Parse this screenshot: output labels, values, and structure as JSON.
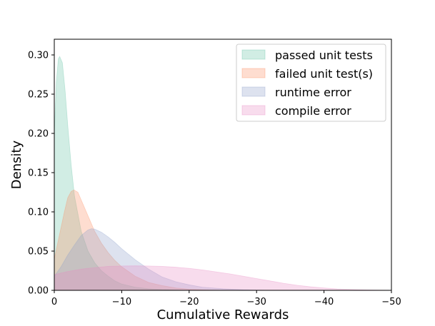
{
  "chart_data": {
    "type": "area",
    "title": "",
    "xlabel": "Cumulative Rewards",
    "ylabel": "Density",
    "xlim": [
      0,
      -50
    ],
    "ylim": [
      0.0,
      0.32
    ],
    "grid": false,
    "legend_position": "top-right",
    "x_ticks": [
      0,
      -10,
      -20,
      -30,
      -40,
      -50
    ],
    "x_tick_labels": [
      "0",
      "−10",
      "−20",
      "−30",
      "−40",
      "−50"
    ],
    "y_ticks": [
      0.0,
      0.05,
      0.1,
      0.15,
      0.2,
      0.25,
      0.3
    ],
    "y_tick_labels": [
      "0.00",
      "0.05",
      "0.10",
      "0.15",
      "0.20",
      "0.25",
      "0.30"
    ],
    "series": [
      {
        "name": "passed unit tests",
        "color": "#66c2a5",
        "x": [
          0,
          -0.3,
          -0.6,
          -0.8,
          -1.2,
          -1.6,
          -2,
          -2.5,
          -3,
          -4,
          -5,
          -6,
          -7,
          -8,
          -9,
          -10,
          -12,
          -14,
          -16,
          -18,
          -20
        ],
        "y": [
          0.2,
          0.265,
          0.295,
          0.298,
          0.29,
          0.255,
          0.21,
          0.16,
          0.12,
          0.075,
          0.05,
          0.035,
          0.025,
          0.018,
          0.012,
          0.008,
          0.004,
          0.002,
          0.001,
          0.0004,
          0
        ]
      },
      {
        "name": "failed unit test(s)",
        "color": "#fc8d62",
        "x": [
          0,
          -0.5,
          -1,
          -1.5,
          -2,
          -2.5,
          -2.9,
          -3.5,
          -4,
          -5,
          -6,
          -7,
          -8,
          -9,
          -10,
          -12,
          -14,
          -16,
          -18,
          -20,
          -22,
          -25
        ],
        "y": [
          0.04,
          0.06,
          0.08,
          0.1,
          0.118,
          0.126,
          0.128,
          0.125,
          0.115,
          0.095,
          0.075,
          0.06,
          0.048,
          0.038,
          0.03,
          0.018,
          0.01,
          0.006,
          0.003,
          0.0015,
          0.0007,
          0
        ]
      },
      {
        "name": "runtime error",
        "color": "#8da0cb",
        "x": [
          0,
          -1,
          -2,
          -3,
          -4,
          -5,
          -5.5,
          -6,
          -7,
          -8,
          -9,
          -10,
          -12,
          -14,
          -16,
          -18,
          -20,
          -22,
          -25,
          -28,
          -32
        ],
        "y": [
          0.018,
          0.03,
          0.045,
          0.058,
          0.07,
          0.077,
          0.0785,
          0.078,
          0.074,
          0.068,
          0.061,
          0.053,
          0.039,
          0.027,
          0.017,
          0.011,
          0.007,
          0.004,
          0.002,
          0.0008,
          0
        ]
      },
      {
        "name": "compile error",
        "color": "#e78ac3",
        "x": [
          0,
          -2,
          -4,
          -6,
          -8,
          -10,
          -12,
          -14,
          -16,
          -18,
          -20,
          -22,
          -24,
          -26,
          -28,
          -30,
          -32,
          -34,
          -36,
          -38,
          -40,
          -42,
          -45,
          -48,
          -50
        ],
        "y": [
          0.02,
          0.024,
          0.027,
          0.029,
          0.0305,
          0.031,
          0.0312,
          0.031,
          0.0305,
          0.0295,
          0.028,
          0.026,
          0.0235,
          0.021,
          0.018,
          0.015,
          0.012,
          0.009,
          0.0065,
          0.0045,
          0.003,
          0.0018,
          0.0008,
          0.0003,
          0.0001
        ]
      }
    ]
  }
}
